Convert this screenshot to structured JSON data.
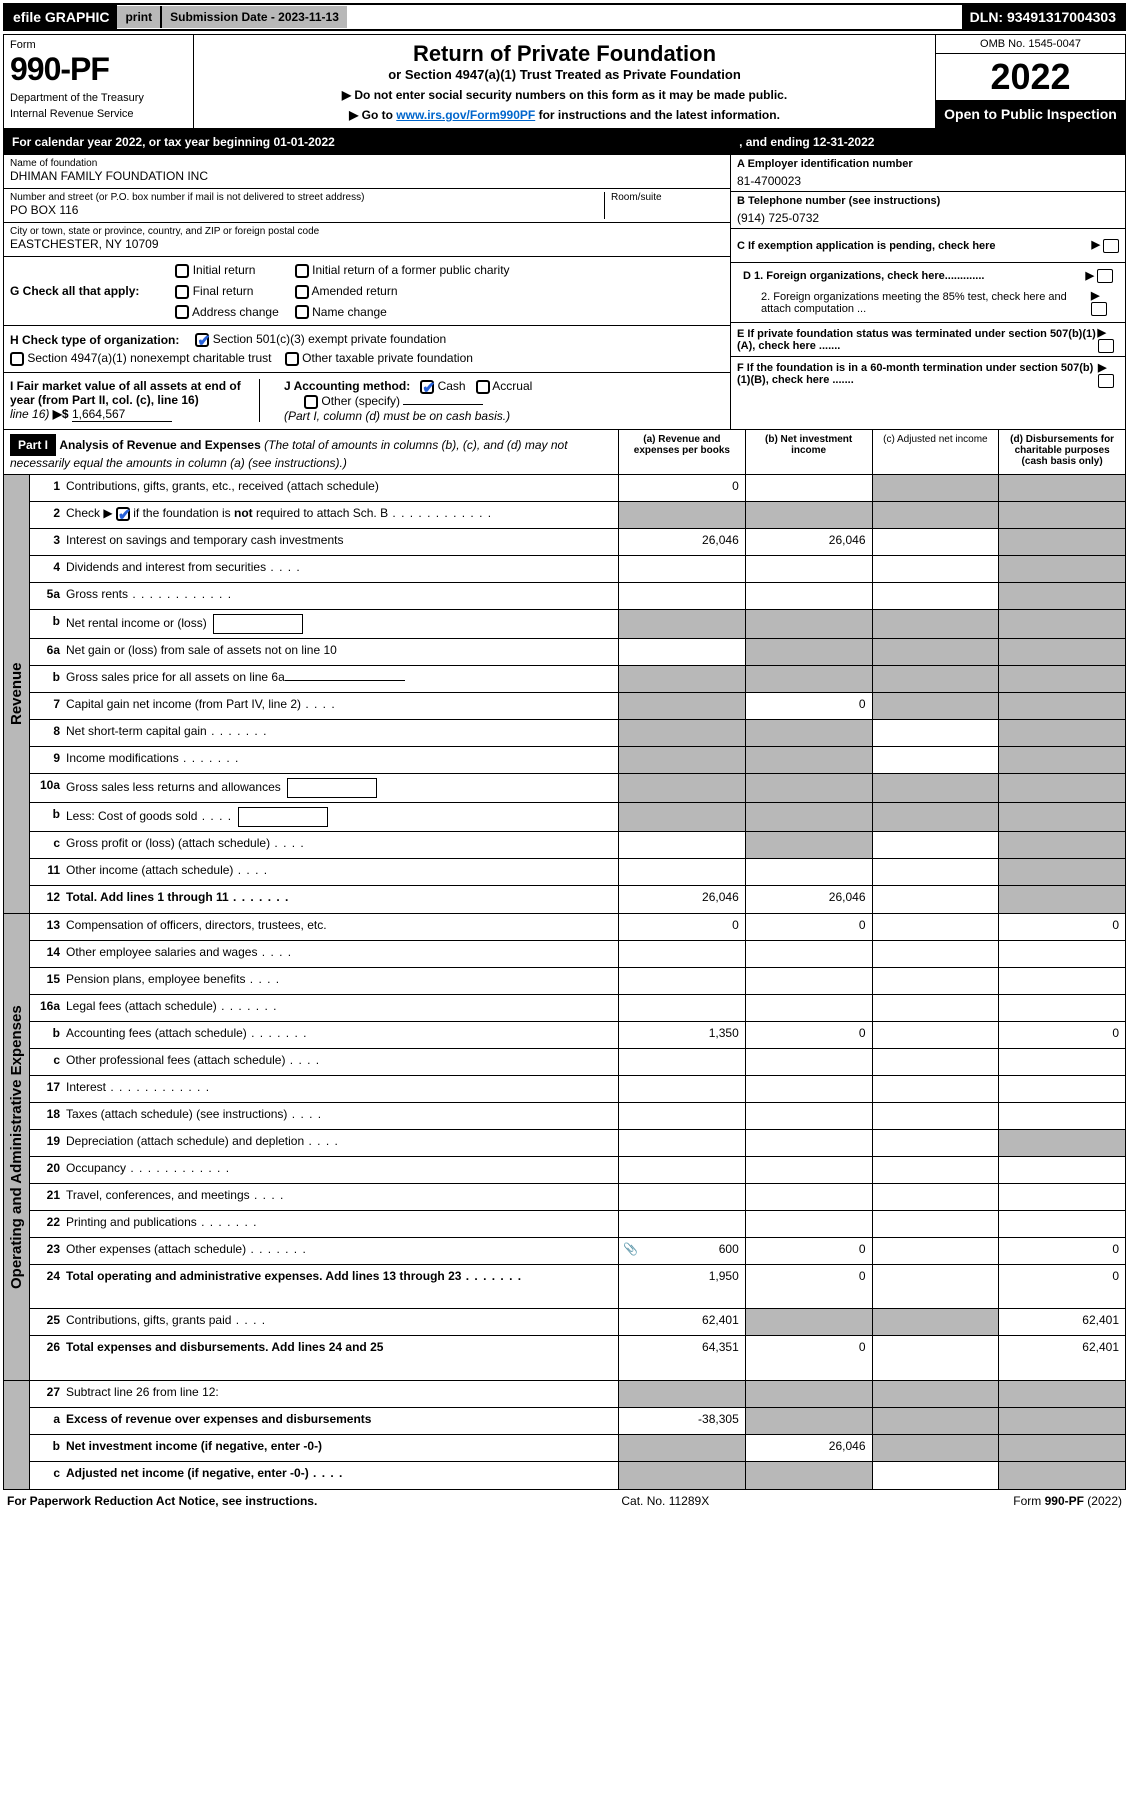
{
  "topbar": {
    "efile": "efile GRAPHIC",
    "print": "print",
    "submission": "Submission Date - 2023-11-13",
    "dln": "DLN: 93491317004303"
  },
  "header": {
    "form_label": "Form",
    "form_number": "990-PF",
    "dept": "Department of the Treasury",
    "irs": "Internal Revenue Service",
    "title": "Return of Private Foundation",
    "subtitle": "or Section 4947(a)(1) Trust Treated as Private Foundation",
    "inst1": "▶ Do not enter social security numbers on this form as it may be made public.",
    "inst2_pre": "▶ Go to ",
    "inst2_link": "www.irs.gov/Form990PF",
    "inst2_post": " for instructions and the latest information.",
    "omb": "OMB No. 1545-0047",
    "year": "2022",
    "open": "Open to Public Inspection"
  },
  "cal": {
    "pre": "For calendar year 2022, or tax year beginning 01-01-2022",
    "mid": ", and ending 12-31-2022"
  },
  "entity": {
    "name_label": "Name of foundation",
    "name": "DHIMAN FAMILY FOUNDATION INC",
    "addr_label": "Number and street (or P.O. box number if mail is not delivered to street address)",
    "addr": "PO BOX 116",
    "room_label": "Room/suite",
    "city_label": "City or town, state or province, country, and ZIP or foreign postal code",
    "city": "EASTCHESTER, NY  10709"
  },
  "side": {
    "a_label": "A Employer identification number",
    "a_val": "81-4700023",
    "b_label": "B Telephone number (see instructions)",
    "b_val": "(914) 725-0732",
    "c_label": "C If exemption application is pending, check here",
    "d1_label": "D 1. Foreign organizations, check here.............",
    "d2_label": "2. Foreign organizations meeting the 85% test, check here and attach computation ...",
    "e_label": "E  If private foundation status was terminated under section 507(b)(1)(A), check here .......",
    "f_label": "F  If the foundation is in a 60-month termination under section 507(b)(1)(B), check here ......."
  },
  "g": {
    "label": "G Check all that apply:",
    "opts": [
      "Initial return",
      "Final return",
      "Address change",
      "Initial return of a former public charity",
      "Amended return",
      "Name change"
    ]
  },
  "h": {
    "label": "H Check type of organization:",
    "opt1": "Section 501(c)(3) exempt private foundation",
    "opt2": "Section 4947(a)(1) nonexempt charitable trust",
    "opt3": "Other taxable private foundation"
  },
  "i": {
    "label": "I Fair market value of all assets at end of year (from Part II, col. (c), line 16)",
    "arrow": "▶$",
    "val": "1,664,567"
  },
  "j": {
    "label": "J Accounting method:",
    "cash": "Cash",
    "accrual": "Accrual",
    "other": "Other (specify)",
    "note": "(Part I, column (d) must be on cash basis.)"
  },
  "part1": {
    "label": "Part I",
    "title": "Analysis of Revenue and Expenses",
    "title_note": " (The total of amounts in columns (b), (c), and (d) may not necessarily equal the amounts in column (a) (see instructions).)",
    "col_a": "(a)   Revenue and expenses per books",
    "col_b": "(b)   Net investment income",
    "col_c": "(c)   Adjusted net income",
    "col_d": "(d)   Disbursements for charitable purposes (cash basis only)"
  },
  "vert": {
    "revenue": "Revenue",
    "expenses": "Operating and Administrative Expenses"
  },
  "rows": [
    {
      "num": "1",
      "desc": "Contributions, gifts, grants, etc., received (attach schedule)",
      "a": "0",
      "b": "",
      "c": "",
      "d": "",
      "shade": [
        "c",
        "d"
      ]
    },
    {
      "num": "2",
      "desc": "Check ▶ [✔] if the foundation is not required to attach Sch. B",
      "a": "",
      "b": "",
      "c": "",
      "d": "",
      "shade": [
        "a",
        "b",
        "c",
        "d"
      ],
      "check": true,
      "dots": true
    },
    {
      "num": "3",
      "desc": "Interest on savings and temporary cash investments",
      "a": "26,046",
      "b": "26,046",
      "c": "",
      "d": "",
      "shade": [
        "d"
      ]
    },
    {
      "num": "4",
      "desc": "Dividends and interest from securities",
      "a": "",
      "b": "",
      "c": "",
      "d": "",
      "shade": [
        "d"
      ],
      "dots_s": true
    },
    {
      "num": "5a",
      "desc": "Gross rents",
      "a": "",
      "b": "",
      "c": "",
      "d": "",
      "shade": [
        "d"
      ],
      "dots": true
    },
    {
      "num": "b",
      "desc": "Net rental income or (loss)",
      "a": "",
      "b": "",
      "c": "",
      "d": "",
      "shade": [
        "a",
        "b",
        "c",
        "d"
      ],
      "inner": true
    },
    {
      "num": "6a",
      "desc": "Net gain or (loss) from sale of assets not on line 10",
      "a": "",
      "b": "",
      "c": "",
      "d": "",
      "shade": [
        "b",
        "c",
        "d"
      ]
    },
    {
      "num": "b",
      "desc": "Gross sales price for all assets on line 6a",
      "a": "",
      "b": "",
      "c": "",
      "d": "",
      "shade": [
        "a",
        "b",
        "c",
        "d"
      ],
      "line": true
    },
    {
      "num": "7",
      "desc": "Capital gain net income (from Part IV, line 2)",
      "a": "",
      "b": "0",
      "c": "",
      "d": "",
      "shade": [
        "a",
        "c",
        "d"
      ],
      "dots_s": true
    },
    {
      "num": "8",
      "desc": "Net short-term capital gain",
      "a": "",
      "b": "",
      "c": "",
      "d": "",
      "shade": [
        "a",
        "b",
        "d"
      ],
      "dots_m": true
    },
    {
      "num": "9",
      "desc": "Income modifications",
      "a": "",
      "b": "",
      "c": "",
      "d": "",
      "shade": [
        "a",
        "b",
        "d"
      ],
      "dots_m": true
    },
    {
      "num": "10a",
      "desc": "Gross sales less returns and allowances",
      "a": "",
      "b": "",
      "c": "",
      "d": "",
      "shade": [
        "a",
        "b",
        "c",
        "d"
      ],
      "inner": true
    },
    {
      "num": "b",
      "desc": "Less: Cost of goods sold",
      "a": "",
      "b": "",
      "c": "",
      "d": "",
      "shade": [
        "a",
        "b",
        "c",
        "d"
      ],
      "dots_s": true,
      "inner": true
    },
    {
      "num": "c",
      "desc": "Gross profit or (loss) (attach schedule)",
      "a": "",
      "b": "",
      "c": "",
      "d": "",
      "shade": [
        "b",
        "d"
      ],
      "dots_s": true
    },
    {
      "num": "11",
      "desc": "Other income (attach schedule)",
      "a": "",
      "b": "",
      "c": "",
      "d": "",
      "shade": [
        "d"
      ],
      "dots_s": true
    },
    {
      "num": "12",
      "desc": "Total. Add lines 1 through 11",
      "a": "26,046",
      "b": "26,046",
      "c": "",
      "d": "",
      "shade": [
        "d"
      ],
      "bold": true,
      "dots_m": true
    }
  ],
  "exp_rows": [
    {
      "num": "13",
      "desc": "Compensation of officers, directors, trustees, etc.",
      "a": "0",
      "b": "0",
      "c": "",
      "d": "0"
    },
    {
      "num": "14",
      "desc": "Other employee salaries and wages",
      "a": "",
      "b": "",
      "c": "",
      "d": "",
      "dots_s": true
    },
    {
      "num": "15",
      "desc": "Pension plans, employee benefits",
      "a": "",
      "b": "",
      "c": "",
      "d": "",
      "dots_s": true
    },
    {
      "num": "16a",
      "desc": "Legal fees (attach schedule)",
      "a": "",
      "b": "",
      "c": "",
      "d": "",
      "dots_m": true
    },
    {
      "num": "b",
      "desc": "Accounting fees (attach schedule)",
      "a": "1,350",
      "b": "0",
      "c": "",
      "d": "0",
      "dots_m": true
    },
    {
      "num": "c",
      "desc": "Other professional fees (attach schedule)",
      "a": "",
      "b": "",
      "c": "",
      "d": "",
      "dots_s": true
    },
    {
      "num": "17",
      "desc": "Interest",
      "a": "",
      "b": "",
      "c": "",
      "d": "",
      "dots": true
    },
    {
      "num": "18",
      "desc": "Taxes (attach schedule) (see instructions)",
      "a": "",
      "b": "",
      "c": "",
      "d": "",
      "dots_s": true
    },
    {
      "num": "19",
      "desc": "Depreciation (attach schedule) and depletion",
      "a": "",
      "b": "",
      "c": "",
      "d": "",
      "shade": [
        "d"
      ],
      "dots_s": true
    },
    {
      "num": "20",
      "desc": "Occupancy",
      "a": "",
      "b": "",
      "c": "",
      "d": "",
      "dots": true
    },
    {
      "num": "21",
      "desc": "Travel, conferences, and meetings",
      "a": "",
      "b": "",
      "c": "",
      "d": "",
      "dots_s": true
    },
    {
      "num": "22",
      "desc": "Printing and publications",
      "a": "",
      "b": "",
      "c": "",
      "d": "",
      "dots_m": true
    },
    {
      "num": "23",
      "desc": "Other expenses (attach schedule)",
      "a": "600",
      "b": "0",
      "c": "",
      "d": "0",
      "dots_m": true,
      "icon": true
    },
    {
      "num": "24",
      "desc": "Total operating and administrative expenses. Add lines 13 through 23",
      "a": "1,950",
      "b": "0",
      "c": "",
      "d": "0",
      "bold": true,
      "dots_m": true,
      "tall": true
    },
    {
      "num": "25",
      "desc": "Contributions, gifts, grants paid",
      "a": "62,401",
      "b": "",
      "c": "",
      "d": "62,401",
      "shade": [
        "b",
        "c"
      ],
      "dots_s": true
    },
    {
      "num": "26",
      "desc": "Total expenses and disbursements. Add lines 24 and 25",
      "a": "64,351",
      "b": "0",
      "c": "",
      "d": "62,401",
      "bold": true,
      "tall": true
    }
  ],
  "bottom_rows": [
    {
      "num": "27",
      "desc": "Subtract line 26 from line 12:",
      "a": "",
      "b": "",
      "c": "",
      "d": "",
      "shade": [
        "a",
        "b",
        "c",
        "d"
      ]
    },
    {
      "num": "a",
      "desc": "Excess of revenue over expenses and disbursements",
      "a": "-38,305",
      "b": "",
      "c": "",
      "d": "",
      "shade": [
        "b",
        "c",
        "d"
      ],
      "bold": true
    },
    {
      "num": "b",
      "desc": "Net investment income (if negative, enter -0-)",
      "a": "",
      "b": "26,046",
      "c": "",
      "d": "",
      "shade": [
        "a",
        "c",
        "d"
      ],
      "bold": true
    },
    {
      "num": "c",
      "desc": "Adjusted net income (if negative, enter -0-)",
      "a": "",
      "b": "",
      "c": "",
      "d": "",
      "shade": [
        "a",
        "b",
        "d"
      ],
      "bold": true,
      "dots_s": true
    }
  ],
  "footer": {
    "left": "For Paperwork Reduction Act Notice, see instructions.",
    "mid": "Cat. No. 11289X",
    "right": "Form 990-PF (2022)"
  }
}
